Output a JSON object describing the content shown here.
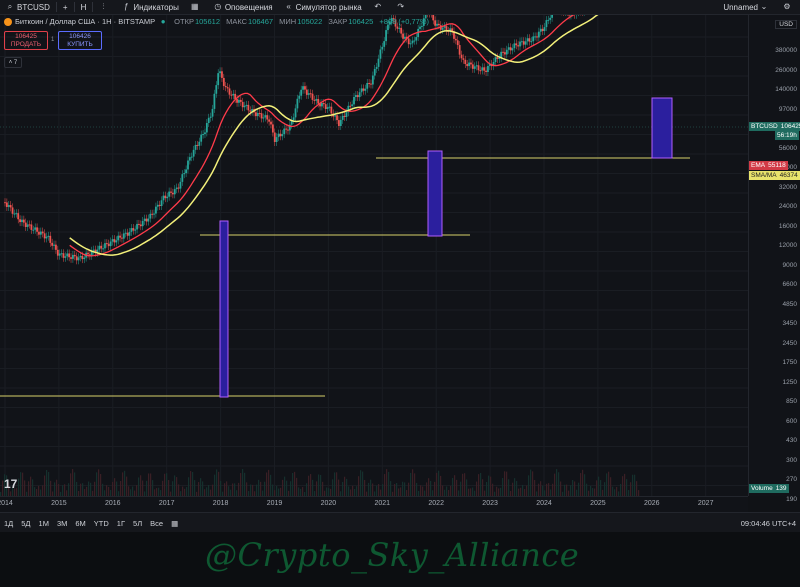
{
  "toolbar": {
    "symbol": "BTCUSD",
    "add": "+",
    "interval": "Н",
    "indicators": "Индикаторы",
    "alerts": "Оповещения",
    "replay": "Симулятор рынка",
    "layout_name": "Unnamed"
  },
  "legend": {
    "title": "Биткоин / Доллар США · 1Н · BITSTAMP",
    "open_label": "ОТКР",
    "open": "105612",
    "high_label": "МАКС",
    "high": "106467",
    "low_label": "МИН",
    "low": "105022",
    "close_label": "ЗАКР",
    "close": "106425",
    "change": "+808 (+0,77%)"
  },
  "trade": {
    "sell_price": "106425",
    "sell_label": "ПРОДАТЬ",
    "spread": "1",
    "buy_price": "106426",
    "buy_label": "КУПИТЬ",
    "collapse": "˄ 7"
  },
  "price_axis": {
    "currency": "USD",
    "labels": [
      "380000",
      "260000",
      "140000",
      "97000",
      "77000",
      "56000",
      "42000",
      "32000",
      "24000",
      "16000",
      "12000",
      "9000",
      "6600",
      "4850",
      "3450",
      "2450",
      "1750",
      "1250",
      "850",
      "600",
      "430",
      "300",
      "270",
      "190"
    ],
    "tags": {
      "btc_label": "BTCUSD",
      "btc_price": "106425",
      "btc_time": "56:19h",
      "ema_label": "EMA",
      "ema_value": "55118",
      "sma_label": "SMA/MA",
      "sma_value": "46374",
      "volume_label": "Volume",
      "volume_value": "139"
    }
  },
  "time_axis": {
    "years": [
      "2014",
      "2015",
      "2016",
      "2017",
      "2018",
      "2019",
      "2020",
      "2021",
      "2022",
      "2023",
      "2024",
      "2025",
      "2026",
      "2027"
    ]
  },
  "bottom": {
    "timeframes": [
      "1Д",
      "5Д",
      "1М",
      "3М",
      "6М",
      "YTD",
      "1Г",
      "5Л",
      "Все"
    ],
    "clock": "09:04:46 UTC+4"
  },
  "watermark": "@Crypto_Sky_Alliance",
  "colors": {
    "candle_up": "#26a69a",
    "candle_down": "#ef5350",
    "ema": "#ff3b4a",
    "sma": "#f3f07a",
    "level": "#d8d06a",
    "highlight_fill": "#2b1f9e",
    "highlight_border": "#b05cff",
    "watermark": "#0f6b3a"
  }
}
